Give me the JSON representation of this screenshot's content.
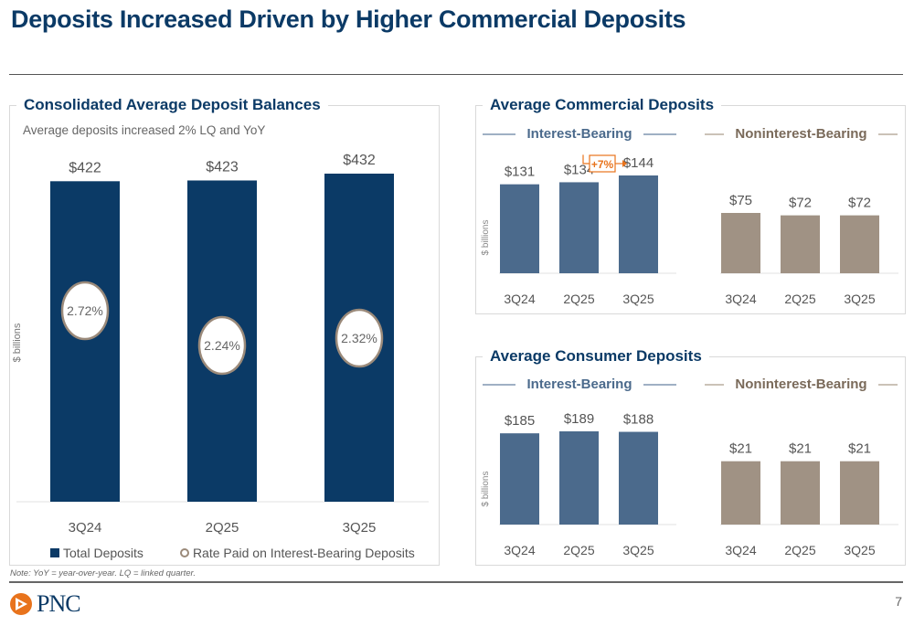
{
  "page": {
    "title": "Deposits Increased Driven by Higher Commercial Deposits",
    "note": "Note: YoY = year-over-year. LQ = linked quarter.",
    "page_number": "7",
    "logo_text": "PNC"
  },
  "colors": {
    "navy": "#0b3a66",
    "slate_blue": "#4b6a8c",
    "taupe": "#a09284",
    "accent_orange": "#e8731c"
  },
  "chart_data": [
    {
      "id": "consolidated",
      "type": "bar",
      "title": "Consolidated Average Deposit Balances",
      "subtitle": "Average deposits increased 2% LQ and YoY",
      "ylabel": "$ billions",
      "categories": [
        "3Q24",
        "2Q25",
        "3Q25"
      ],
      "series": [
        {
          "name": "Total Deposits",
          "values": [
            422,
            423,
            432
          ],
          "labels": [
            "$422",
            "$423",
            "$432"
          ]
        },
        {
          "name": "Rate Paid on Interest-Bearing Deposits",
          "values": [
            2.72,
            2.24,
            2.32
          ],
          "labels": [
            "2.72%",
            "2.24%",
            "2.32%"
          ]
        }
      ],
      "legend": [
        "Total Deposits",
        "Rate Paid on Interest-Bearing Deposits"
      ],
      "legend_position": "bottom"
    },
    {
      "id": "commercial",
      "type": "bar",
      "title": "Average Commercial Deposits",
      "ylabel": "$ billions",
      "groups": [
        {
          "name": "Interest-Bearing",
          "categories": [
            "3Q24",
            "2Q25",
            "3Q25"
          ],
          "values": [
            131,
            134,
            144
          ],
          "labels": [
            "$131",
            "$134",
            "$144"
          ]
        },
        {
          "name": "Noninterest-Bearing",
          "categories": [
            "3Q24",
            "2Q25",
            "3Q25"
          ],
          "values": [
            75,
            72,
            72
          ],
          "labels": [
            "$75",
            "$72",
            "$72"
          ]
        }
      ],
      "annotation": {
        "text": "+7%",
        "from": "2Q25",
        "to": "3Q25",
        "group": "Interest-Bearing"
      }
    },
    {
      "id": "consumer",
      "type": "bar",
      "title": "Average Consumer Deposits",
      "ylabel": "$ billions",
      "groups": [
        {
          "name": "Interest-Bearing",
          "categories": [
            "3Q24",
            "2Q25",
            "3Q25"
          ],
          "values": [
            185,
            189,
            188
          ],
          "labels": [
            "$185",
            "$189",
            "$188"
          ]
        },
        {
          "name": "Noninterest-Bearing",
          "categories": [
            "3Q24",
            "2Q25",
            "3Q25"
          ],
          "values": [
            21,
            21,
            21
          ],
          "labels": [
            "$21",
            "$21",
            "$21"
          ]
        }
      ]
    }
  ]
}
